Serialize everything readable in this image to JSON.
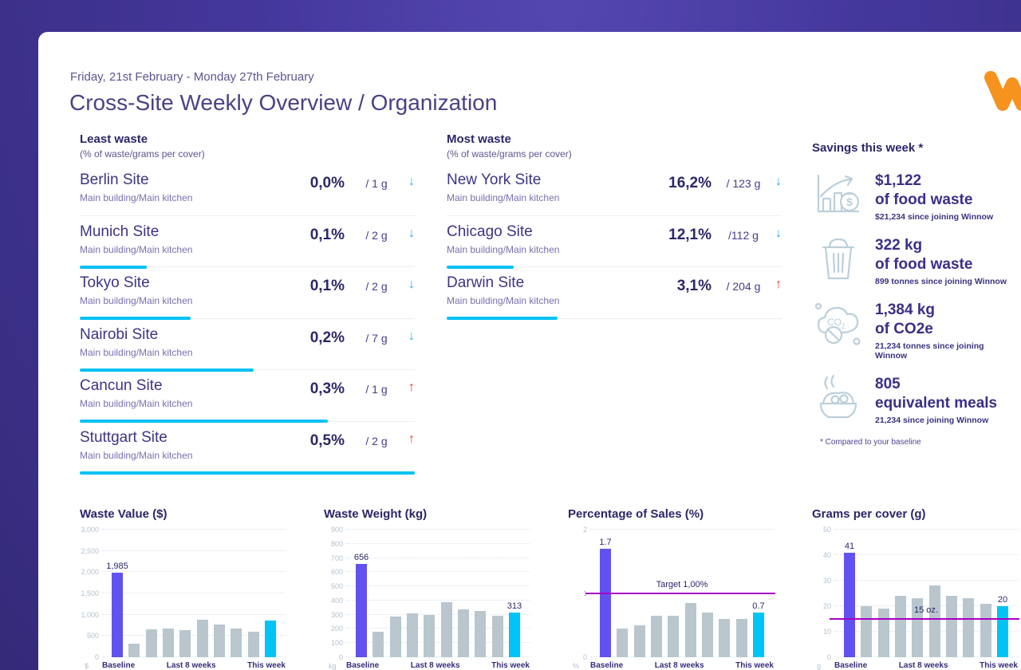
{
  "page": {
    "date_range": "Friday, 21st February - Monday 27th February",
    "title": "Cross-Site Weekly Overview / Organization"
  },
  "colors": {
    "accent_purple": "#6152f0",
    "accent_cyan": "#00c4f5",
    "bar_gray": "#b9c6ce",
    "target_line": "#a800c3",
    "trend_down_blue": "#1fa9f2",
    "trend_up_red": "#e8352e",
    "text_navy": "#2c2768",
    "rank_bar_cyan": "#00c1f4",
    "logo_orange": "#f6921e"
  },
  "least_waste": {
    "heading": "Least waste",
    "subheading": "(% of waste/grams per cover)",
    "rows": [
      {
        "site": "Berlin Site",
        "location": "Main building/Main kitchen",
        "percent": "0,0%",
        "grams": "/ 1 g",
        "trend": "down",
        "bar_pct": 0
      },
      {
        "site": "Munich Site",
        "location": "Main building/Main kitchen",
        "percent": "0,1%",
        "grams": "/ 2 g",
        "trend": "down",
        "bar_pct": 20
      },
      {
        "site": "Tokyo Site",
        "location": "Main building/Main kitchen",
        "percent": "0,1%",
        "grams": "/ 2 g",
        "trend": "down",
        "bar_pct": 33
      },
      {
        "site": "Nairobi Site",
        "location": "Main building/Main kitchen",
        "percent": "0,2%",
        "grams": "/ 7 g",
        "trend": "down",
        "bar_pct": 52
      },
      {
        "site": "Cancun Site",
        "location": "Main building/Main kitchen",
        "percent": "0,3%",
        "grams": "/ 1 g",
        "trend": "up",
        "bar_pct": 74
      },
      {
        "site": "Stuttgart Site",
        "location": "Main building/Main kitchen",
        "percent": "0,5%",
        "grams": "/ 2 g",
        "trend": "up",
        "bar_pct": 100
      }
    ]
  },
  "most_waste": {
    "heading": "Most waste",
    "subheading": "(% of waste/grams per cover)",
    "rows": [
      {
        "site": "New York Site",
        "location": "Main building/Main kitchen",
        "percent": "16,2%",
        "grams": "/ 123 g",
        "trend": "down",
        "bar_pct": 0
      },
      {
        "site": "Chicago Site",
        "location": "Main building/Main kitchen",
        "percent": "12,1%",
        "grams": "/112 g",
        "trend": "down",
        "bar_pct": 20
      },
      {
        "site": "Darwin Site",
        "location": "Main building/Main kitchen",
        "percent": "3,1%",
        "grams": "/ 204 g",
        "trend": "up",
        "bar_pct": 33
      }
    ]
  },
  "savings": {
    "heading": "Savings this week *",
    "footnote": "* Compared to your baseline",
    "items": [
      {
        "icon": "money-growth-chart-icon",
        "value": "$1,122",
        "label": "of food waste",
        "subtext": "$21,234 since joining Winnow"
      },
      {
        "icon": "trash-bin-icon",
        "value": "322 kg",
        "label": "of food waste",
        "subtext": "899 tonnes since joining Winnow"
      },
      {
        "icon": "co2-cloud-icon",
        "value": "1,384 kg",
        "label": "of CO2e",
        "subtext": "21,234 tonnes since joining Winnow"
      },
      {
        "icon": "meal-bowl-icon",
        "value": "805",
        "label": "equivalent meals",
        "subtext": "21,234 since joining Winnow"
      }
    ]
  },
  "chart_data": [
    {
      "type": "bar",
      "title": "Waste Value ($)",
      "unit": "$",
      "ylim": [
        0,
        3000
      ],
      "yticks": [
        0,
        500,
        1000,
        1500,
        2000,
        2500,
        3000
      ],
      "ytick_labels": [
        "0",
        "500",
        "1,000",
        "1,500",
        "2,000",
        "2,500",
        "3,000"
      ],
      "x_groups": [
        "Baseline",
        "Last 8 weeks",
        "This week"
      ],
      "baseline": {
        "value": 1985,
        "label": "1,985"
      },
      "last_8_weeks": [
        310,
        660,
        680,
        640,
        875,
        760,
        670,
        600
      ],
      "this_week": {
        "value": 855,
        "label": ""
      },
      "target": null,
      "grid": true,
      "legend": false
    },
    {
      "type": "bar",
      "title": "Waste Weight (kg)",
      "unit": "kg",
      "ylim": [
        0,
        900
      ],
      "yticks": [
        0,
        100,
        200,
        300,
        400,
        500,
        600,
        700,
        800,
        900
      ],
      "ytick_labels": [
        "0",
        "100",
        "200",
        "300",
        "400",
        "500",
        "600",
        "700",
        "800",
        "900"
      ],
      "x_groups": [
        "Baseline",
        "Last 8 weeks",
        "This week"
      ],
      "baseline": {
        "value": 656,
        "label": "656"
      },
      "last_8_weeks": [
        180,
        285,
        310,
        300,
        390,
        335,
        325,
        290
      ],
      "this_week": {
        "value": 313,
        "label": "313"
      },
      "target": null,
      "grid": true,
      "legend": false
    },
    {
      "type": "bar",
      "title": "Percentage of Sales (%)",
      "unit": "%",
      "ylim": [
        0,
        2
      ],
      "yticks": [
        0,
        1,
        2
      ],
      "ytick_labels": [
        "0",
        "1",
        "2"
      ],
      "x_groups": [
        "Baseline",
        "Last 8 weeks",
        "This week"
      ],
      "baseline": {
        "value": 1.7,
        "label": "1.7"
      },
      "last_8_weeks": [
        0.45,
        0.5,
        0.65,
        0.65,
        0.85,
        0.7,
        0.6,
        0.6
      ],
      "this_week": {
        "value": 0.7,
        "label": "0.7"
      },
      "target": {
        "value": 1,
        "label": "Target 1,00%"
      },
      "grid": true,
      "legend": false
    },
    {
      "type": "bar",
      "title": "Grams per cover (g)",
      "unit": "g",
      "ylim": [
        0,
        50
      ],
      "yticks": [
        0,
        10,
        20,
        30,
        40,
        50
      ],
      "ytick_labels": [
        "0",
        "10",
        "20",
        "30",
        "40",
        "50"
      ],
      "x_groups": [
        "Baseline",
        "Last 8 weeks",
        "This week"
      ],
      "baseline": {
        "value": 41,
        "label": "41"
      },
      "last_8_weeks": [
        20,
        19,
        24,
        23,
        28,
        24,
        23,
        21
      ],
      "this_week": {
        "value": 20,
        "label": "20"
      },
      "target": {
        "value": 15,
        "label": "15 oz."
      },
      "grid": true,
      "legend": false
    }
  ],
  "logo": {
    "name": "winnow-logo"
  }
}
